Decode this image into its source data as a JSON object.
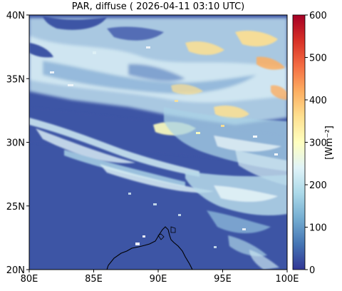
{
  "title": "PAR, diffuse ( 2026-04-11 03:10 UTC)",
  "map": {
    "lon_range": [
      80,
      100
    ],
    "lat_range": [
      20,
      40
    ],
    "x_ticks": [
      "80E",
      "85E",
      "90E",
      "95E",
      "100E"
    ],
    "y_ticks": [
      "40N",
      "35N",
      "30N",
      "25N",
      "20N"
    ],
    "background_color": "#3d55a5",
    "coastline_color": "#000000"
  },
  "colorbar": {
    "label": "[Wm⁻²]",
    "range": [
      0,
      600
    ],
    "ticks": [
      "600",
      "500",
      "400",
      "300",
      "200",
      "100",
      "0"
    ],
    "colors": [
      "#313695",
      "#4575b4",
      "#74add1",
      "#abd9e9",
      "#e0f3f8",
      "#ffffbf",
      "#fee090",
      "#fdae61",
      "#f46d43",
      "#d73027",
      "#a50026"
    ]
  }
}
